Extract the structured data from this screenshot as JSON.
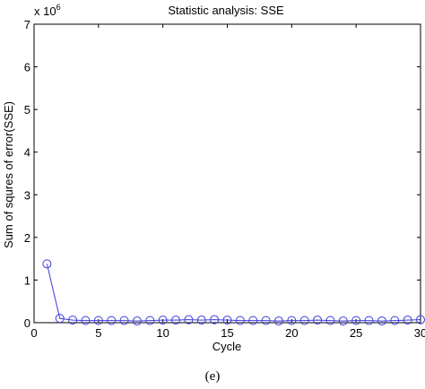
{
  "chart_data": {
    "type": "line",
    "title": "Statistic analysis: SSE",
    "xlabel": "Cycle",
    "ylabel": "Sum of squres of error(SSE)",
    "y_multiplier": "x 10",
    "y_multiplier_exponent": "6",
    "xlim": [
      0,
      30
    ],
    "ylim": [
      0,
      7
    ],
    "xticks": [
      "0",
      "5",
      "10",
      "15",
      "20",
      "25",
      "30"
    ],
    "yticks": [
      "0",
      "1",
      "2",
      "3",
      "4",
      "5",
      "6",
      "7"
    ],
    "grid": false,
    "marker": "circle",
    "line_color": "#3b3bdd",
    "series": [
      {
        "x": [
          1,
          2,
          3,
          4,
          5,
          6,
          7,
          8,
          9,
          10,
          11,
          12,
          13,
          14,
          15,
          16,
          17,
          18,
          19,
          20,
          21,
          22,
          23,
          24,
          25,
          26,
          27,
          28,
          29,
          30
        ],
        "y": [
          1.38,
          0.1,
          0.06,
          0.05,
          0.05,
          0.05,
          0.05,
          0.04,
          0.05,
          0.06,
          0.06,
          0.07,
          0.06,
          0.07,
          0.06,
          0.05,
          0.05,
          0.05,
          0.04,
          0.05,
          0.05,
          0.06,
          0.05,
          0.04,
          0.05,
          0.05,
          0.04,
          0.05,
          0.06,
          0.07
        ]
      }
    ]
  },
  "caption": "(e)"
}
